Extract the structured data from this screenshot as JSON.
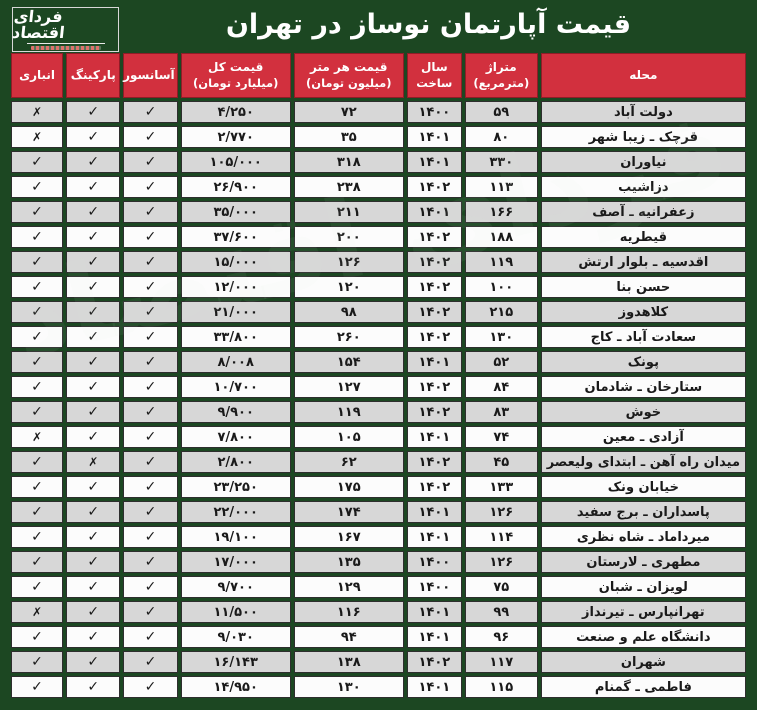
{
  "title": "قیمت آپارتمان نوساز در تهران",
  "logo": {
    "name": "فردای اقتصاد"
  },
  "marks": {
    "yes": "✓",
    "no": "✗"
  },
  "colors": {
    "background_green": "#1c4722",
    "header_red": "#d2303e",
    "row_odd_gray": "#d7d7d7",
    "row_even_white": "#fcfcfc",
    "header_text": "#ffffff",
    "cell_text": "#1a1a1a"
  },
  "chart_data": {
    "type": "table",
    "title": "قیمت آپارتمان نوساز در تهران",
    "columns": [
      {
        "key": "name",
        "label": "محله",
        "sub": ""
      },
      {
        "key": "area",
        "label": "متراژ",
        "sub": "(مترمربع)"
      },
      {
        "key": "year",
        "label": "سال",
        "sub": "ساخت"
      },
      {
        "key": "price_per_meter",
        "label": "قیمت هر متر",
        "sub": "(میلیون تومان)"
      },
      {
        "key": "total_price",
        "label": "قیمت کل",
        "sub": "(میلیارد تومان)"
      },
      {
        "key": "elevator",
        "label": "آسانسور",
        "sub": ""
      },
      {
        "key": "parking",
        "label": "پارکینگ",
        "sub": ""
      },
      {
        "key": "storage",
        "label": "انباری",
        "sub": ""
      }
    ],
    "rows": [
      {
        "name": "دولت آباد",
        "area": "۵۹",
        "year": "۱۴۰۰",
        "price_per_meter": "۷۲",
        "total_price": "۴/۲۵۰",
        "elevator": "yes",
        "parking": "yes",
        "storage": "no"
      },
      {
        "name": "قرچک ـ زیبا شهر",
        "area": "۸۰",
        "year": "۱۴۰۱",
        "price_per_meter": "۳۵",
        "total_price": "۲/۷۷۰",
        "elevator": "yes",
        "parking": "yes",
        "storage": "no"
      },
      {
        "name": "نیاوران",
        "area": "۳۳۰",
        "year": "۱۴۰۱",
        "price_per_meter": "۳۱۸",
        "total_price": "۱۰۵/۰۰۰",
        "elevator": "yes",
        "parking": "yes",
        "storage": "yes"
      },
      {
        "name": "دزاشیب",
        "area": "۱۱۳",
        "year": "۱۴۰۲",
        "price_per_meter": "۲۳۸",
        "total_price": "۲۶/۹۰۰",
        "elevator": "yes",
        "parking": "yes",
        "storage": "yes"
      },
      {
        "name": "زعفرانیه ـ آصف",
        "area": "۱۶۶",
        "year": "۱۴۰۱",
        "price_per_meter": "۲۱۱",
        "total_price": "۳۵/۰۰۰",
        "elevator": "yes",
        "parking": "yes",
        "storage": "yes"
      },
      {
        "name": "قیطریه",
        "area": "۱۸۸",
        "year": "۱۴۰۲",
        "price_per_meter": "۲۰۰",
        "total_price": "۳۷/۶۰۰",
        "elevator": "yes",
        "parking": "yes",
        "storage": "yes"
      },
      {
        "name": "اقدسیه ـ بلوار ارتش",
        "area": "۱۱۹",
        "year": "۱۴۰۲",
        "price_per_meter": "۱۲۶",
        "total_price": "۱۵/۰۰۰",
        "elevator": "yes",
        "parking": "yes",
        "storage": "yes"
      },
      {
        "name": "حسن بنا",
        "area": "۱۰۰",
        "year": "۱۴۰۲",
        "price_per_meter": "۱۲۰",
        "total_price": "۱۲/۰۰۰",
        "elevator": "yes",
        "parking": "yes",
        "storage": "yes"
      },
      {
        "name": "کلاهدوز",
        "area": "۲۱۵",
        "year": "۱۴۰۲",
        "price_per_meter": "۹۸",
        "total_price": "۲۱/۰۰۰",
        "elevator": "yes",
        "parking": "yes",
        "storage": "yes"
      },
      {
        "name": "سعادت آباد ـ کاج",
        "area": "۱۳۰",
        "year": "۱۴۰۲",
        "price_per_meter": "۲۶۰",
        "total_price": "۳۳/۸۰۰",
        "elevator": "yes",
        "parking": "yes",
        "storage": "yes"
      },
      {
        "name": "پونک",
        "area": "۵۲",
        "year": "۱۴۰۱",
        "price_per_meter": "۱۵۴",
        "total_price": "۸/۰۰۸",
        "elevator": "yes",
        "parking": "yes",
        "storage": "yes"
      },
      {
        "name": "ستارخان ـ شادمان",
        "area": "۸۴",
        "year": "۱۴۰۲",
        "price_per_meter": "۱۲۷",
        "total_price": "۱۰/۷۰۰",
        "elevator": "yes",
        "parking": "yes",
        "storage": "yes"
      },
      {
        "name": "خوش",
        "area": "۸۳",
        "year": "۱۴۰۲",
        "price_per_meter": "۱۱۹",
        "total_price": "۹/۹۰۰",
        "elevator": "yes",
        "parking": "yes",
        "storage": "yes"
      },
      {
        "name": "آزادی ـ معین",
        "area": "۷۴",
        "year": "۱۴۰۱",
        "price_per_meter": "۱۰۵",
        "total_price": "۷/۸۰۰",
        "elevator": "yes",
        "parking": "yes",
        "storage": "no"
      },
      {
        "name": "میدان راه آهن ـ ابتدای ولیعصر",
        "area": "۴۵",
        "year": "۱۴۰۲",
        "price_per_meter": "۶۲",
        "total_price": "۲/۸۰۰",
        "elevator": "yes",
        "parking": "no",
        "storage": "yes"
      },
      {
        "name": "خیابان ونک",
        "area": "۱۳۳",
        "year": "۱۴۰۲",
        "price_per_meter": "۱۷۵",
        "total_price": "۲۳/۲۵۰",
        "elevator": "yes",
        "parking": "yes",
        "storage": "yes"
      },
      {
        "name": "پاسداران ـ برج سفید",
        "area": "۱۲۶",
        "year": "۱۴۰۱",
        "price_per_meter": "۱۷۴",
        "total_price": "۲۲/۰۰۰",
        "elevator": "yes",
        "parking": "yes",
        "storage": "yes"
      },
      {
        "name": "میرداماد ـ شاه نظری",
        "area": "۱۱۴",
        "year": "۱۴۰۱",
        "price_per_meter": "۱۶۷",
        "total_price": "۱۹/۱۰۰",
        "elevator": "yes",
        "parking": "yes",
        "storage": "yes"
      },
      {
        "name": "مطهری ـ لارستان",
        "area": "۱۲۶",
        "year": "۱۴۰۰",
        "price_per_meter": "۱۳۵",
        "total_price": "۱۷/۰۰۰",
        "elevator": "yes",
        "parking": "yes",
        "storage": "yes"
      },
      {
        "name": "لویزان ـ شبان",
        "area": "۷۵",
        "year": "۱۴۰۰",
        "price_per_meter": "۱۲۹",
        "total_price": "۹/۷۰۰",
        "elevator": "yes",
        "parking": "yes",
        "storage": "yes"
      },
      {
        "name": "تهرانپارس ـ تیرنداز",
        "area": "۹۹",
        "year": "۱۴۰۱",
        "price_per_meter": "۱۱۶",
        "total_price": "۱۱/۵۰۰",
        "elevator": "yes",
        "parking": "yes",
        "storage": "no"
      },
      {
        "name": "دانشگاه علم و صنعت",
        "area": "۹۶",
        "year": "۱۴۰۱",
        "price_per_meter": "۹۴",
        "total_price": "۹/۰۳۰",
        "elevator": "yes",
        "parking": "yes",
        "storage": "yes"
      },
      {
        "name": "شهران",
        "area": "۱۱۷",
        "year": "۱۴۰۲",
        "price_per_meter": "۱۳۸",
        "total_price": "۱۶/۱۴۳",
        "elevator": "yes",
        "parking": "yes",
        "storage": "yes"
      },
      {
        "name": "فاطمی ـ گمنام",
        "area": "۱۱۵",
        "year": "۱۴۰۱",
        "price_per_meter": "۱۳۰",
        "total_price": "۱۴/۹۵۰",
        "elevator": "yes",
        "parking": "yes",
        "storage": "yes"
      }
    ]
  }
}
